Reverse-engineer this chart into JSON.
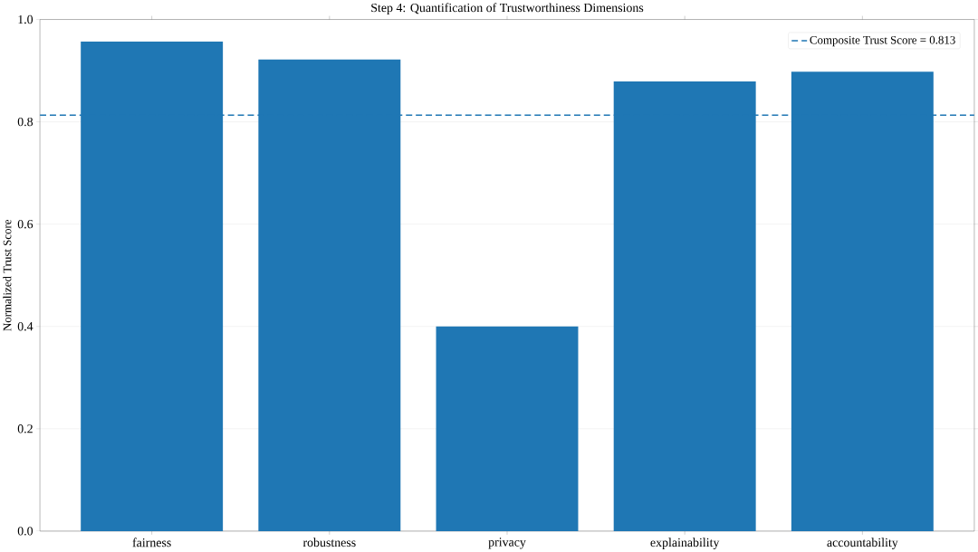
{
  "chart_data": {
    "type": "bar",
    "title": "Step 4: Quantification of Trustworthiness Dimensions",
    "ylabel": "Normalized Trust Score",
    "categories": [
      "fairness",
      "robustness",
      "privacy",
      "explainability",
      "accountability"
    ],
    "values": [
      0.957,
      0.922,
      0.4,
      0.879,
      0.898
    ],
    "color": "#1f77b4",
    "ylim": [
      0,
      1.0
    ],
    "yticks": [
      {
        "value": 0,
        "label": "0.0"
      },
      {
        "value": 0.2,
        "label": "0.2"
      },
      {
        "value": 0.4,
        "label": "0.4"
      },
      {
        "value": 0.6,
        "label": "0.6"
      },
      {
        "value": 0.8,
        "label": "0.8"
      },
      {
        "value": 1.0,
        "label": "1.0"
      }
    ],
    "ref_lines": [
      {
        "axis": "y",
        "value": 0.813,
        "label": "Composite Trust Score = 0.813",
        "color": "#1f77b4",
        "line_style": "dashed"
      }
    ],
    "grid": "y",
    "legend": "top right"
  }
}
